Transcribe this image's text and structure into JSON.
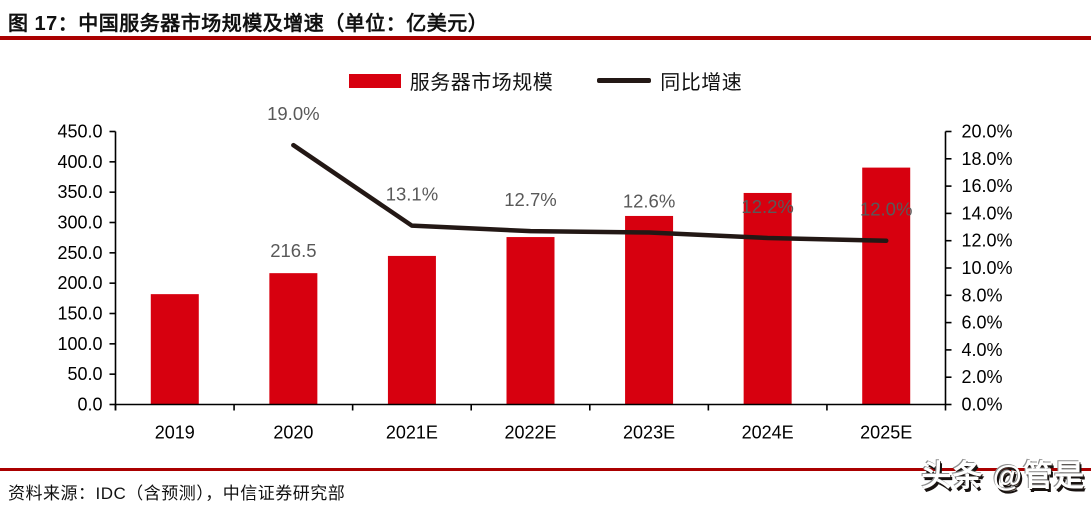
{
  "header": {
    "title": "图 17：中国服务器市场规模及增速（单位：亿美元）"
  },
  "legend": {
    "bar_label": "服务器市场规模",
    "line_label": "同比增速"
  },
  "footer": {
    "source": "资料来源：IDC（含预测），中信证券研究部"
  },
  "watermark": "头条 @管是",
  "colors": {
    "bar": "#d7000f",
    "line": "#231815",
    "accent_rule": "#aa0000",
    "data_label": "#595959",
    "axis": "#000000",
    "tick_text": "#000000"
  },
  "chart_data": {
    "type": "bar+line combo",
    "categories": [
      "2019",
      "2020",
      "2021E",
      "2022E",
      "2023E",
      "2024E",
      "2025E"
    ],
    "series": [
      {
        "name": "服务器市场规模",
        "type": "bar",
        "axis": "left",
        "values": [
          181.9,
          216.5,
          244.9,
          276.0,
          310.8,
          348.7,
          390.5
        ],
        "labels": [
          null,
          "216.5",
          null,
          null,
          null,
          null,
          null
        ]
      },
      {
        "name": "同比增速",
        "type": "line",
        "axis": "right",
        "values": [
          null,
          19.0,
          13.1,
          12.7,
          12.6,
          12.2,
          12.0
        ],
        "labels": [
          null,
          "19.0%",
          "13.1%",
          "12.7%",
          "12.6%",
          "12.2%",
          "12.0%"
        ]
      }
    ],
    "left_axis": {
      "min": 0,
      "max": 450,
      "step": 50,
      "tick_format": "fixed1"
    },
    "right_axis": {
      "min": 0,
      "max": 20,
      "step": 2,
      "tick_format": "fixed1_percent"
    },
    "grid": false,
    "legend_position": "top-center",
    "title": "中国服务器市场规模及增速",
    "unit": "亿美元"
  }
}
